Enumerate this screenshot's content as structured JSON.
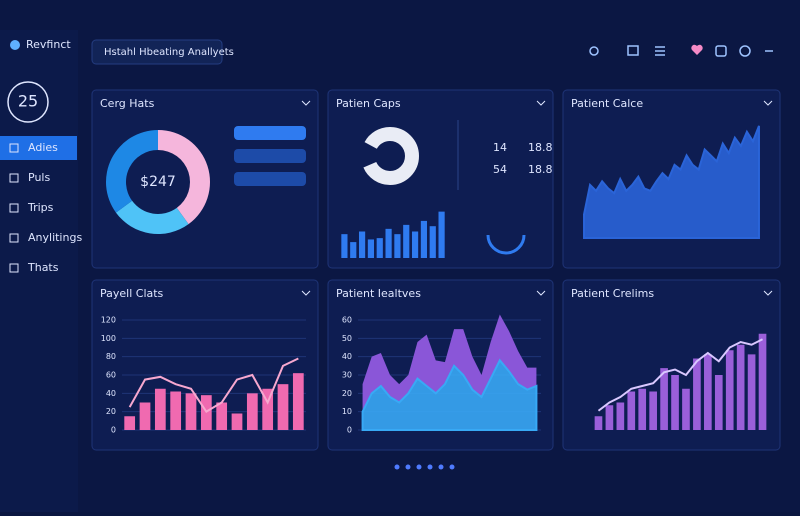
{
  "app": {
    "name": "Revfinct",
    "badge": "25",
    "header": "Hstahl Hbeating Anallyets"
  },
  "nav": [
    "Adies",
    "Puls",
    "Trips",
    "Anylitings",
    "Thats"
  ],
  "chart_data": [
    {
      "type": "pie",
      "title": "Cerg Hats",
      "center_label": "$247",
      "values": [
        40,
        25,
        35
      ],
      "colors": [
        "#f5b6dc",
        "#4fc3f7",
        "#1e88e5"
      ]
    },
    {
      "type": "bar",
      "title": "Patien Caps",
      "stats": [
        [
          "14",
          "18.8"
        ],
        [
          "54",
          "18.8"
        ]
      ],
      "values": [
        18,
        12,
        20,
        14,
        15,
        22,
        18,
        25,
        20,
        28,
        24,
        35
      ],
      "color": "#2f7bf0",
      "ylim": [
        0,
        40
      ]
    },
    {
      "type": "area",
      "title": "Patient Calce",
      "values": [
        20,
        45,
        40,
        48,
        42,
        38,
        50,
        40,
        45,
        52,
        42,
        40,
        48,
        55,
        50,
        62,
        58,
        70,
        62,
        58,
        75,
        70,
        65,
        80,
        72,
        85,
        78,
        90,
        82,
        95
      ],
      "color": "#2a64d8",
      "ylim": [
        0,
        100
      ]
    },
    {
      "type": "bar_line",
      "title": "Payell Clats",
      "ylim": [
        0,
        120
      ],
      "yticks": [
        0,
        20,
        40,
        60,
        80,
        100,
        120
      ],
      "series": [
        {
          "color": "#f06ab0",
          "values": [
            15,
            30,
            45,
            42,
            40,
            38,
            30,
            18,
            40,
            45,
            50,
            62
          ]
        },
        {
          "color": "#f7a8cf",
          "values": [
            25,
            55,
            58,
            50,
            45,
            20,
            30,
            55,
            60,
            30,
            70,
            78
          ]
        }
      ]
    },
    {
      "type": "stacked_area",
      "title": "Patient Iealtves",
      "ylim": [
        0,
        60
      ],
      "yticks": [
        0,
        10,
        20,
        30,
        40,
        50,
        60
      ],
      "series": [
        {
          "color": "#38a9f5",
          "values": [
            10,
            20,
            24,
            18,
            15,
            20,
            28,
            24,
            20,
            25,
            35,
            30,
            22,
            18,
            28,
            38,
            32,
            25,
            22,
            24
          ]
        },
        {
          "color": "#8a56d8",
          "values": [
            15,
            20,
            18,
            12,
            10,
            10,
            20,
            28,
            18,
            12,
            20,
            25,
            18,
            12,
            20,
            25,
            22,
            18,
            12,
            10
          ]
        }
      ]
    },
    {
      "type": "bar_line",
      "title": "Patient Crelims",
      "ylim": [
        0,
        80
      ],
      "series": [
        {
          "color": "#9a5fd9",
          "values": [
            10,
            18,
            20,
            28,
            30,
            28,
            45,
            40,
            30,
            52,
            55,
            40,
            58,
            62,
            55,
            70
          ]
        },
        {
          "color": "#d9c8ff",
          "values": [
            14,
            20,
            24,
            30,
            32,
            34,
            42,
            44,
            40,
            50,
            56,
            50,
            60,
            64,
            62,
            66
          ]
        }
      ]
    }
  ]
}
